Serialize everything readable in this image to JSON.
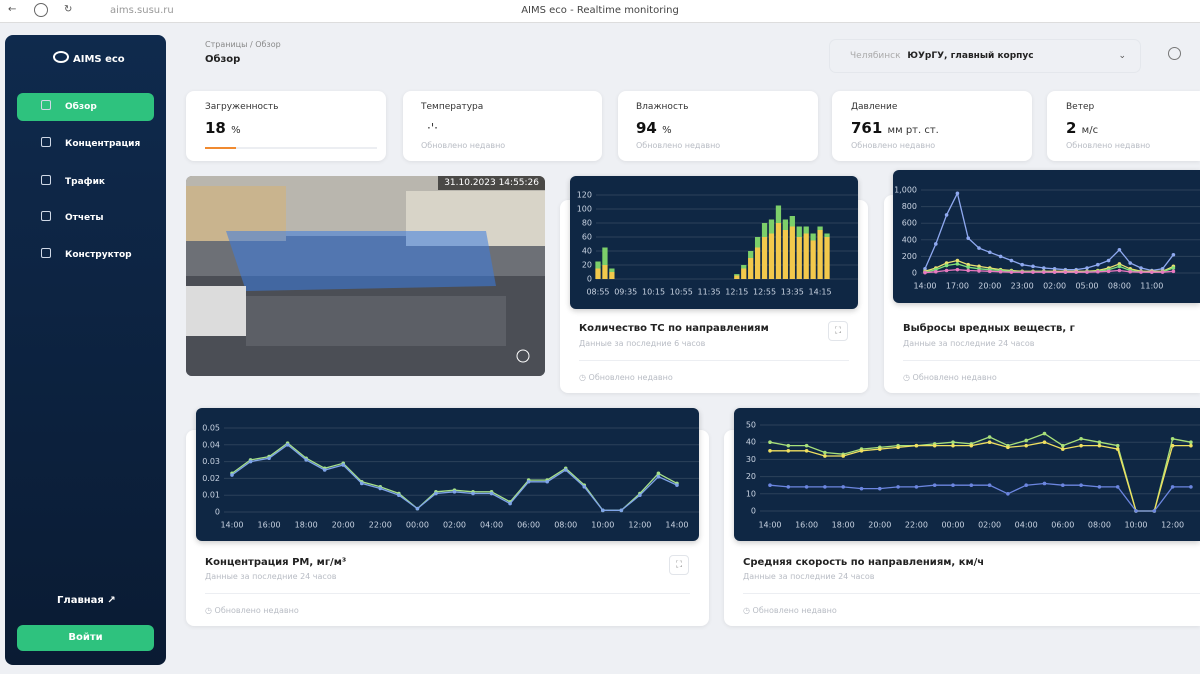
{
  "browser": {
    "url": "aims.susu.ru",
    "title": "AIMS eco - Realtime monitoring"
  },
  "sidebar": {
    "brand": "AIMS eco",
    "nav": [
      "Обзор",
      "Концентрация",
      "Трафик",
      "Отчеты",
      "Конструктор"
    ],
    "home": "Главная",
    "login": "Войти"
  },
  "header": {
    "breadcrumb": [
      "Страницы",
      "Обзор"
    ],
    "title": "Обзор",
    "city": "Челябинск",
    "location": "ЮУрГУ, главный корпус"
  },
  "stats": [
    {
      "label": "Загруженность",
      "value": 18,
      "unit": "%"
    },
    {
      "label": "Температура",
      "note": "Обновлено недавно"
    },
    {
      "label": "Влажность",
      "value": 94,
      "unit": "%",
      "note": "Обновлено недавно"
    },
    {
      "label": "Давление",
      "value": 761,
      "unit": "мм рт. ст.",
      "note": "Обновлено недавно"
    },
    {
      "label": "Ветер",
      "value": 2,
      "unit": "м/с",
      "note": "Обновлено недавно"
    }
  ],
  "camera": {
    "timestamp": "31.10.2023 14:55:26"
  },
  "chart_data": [
    {
      "type": "bar",
      "title": "Количество ТС по направлениям",
      "subtitle": "Данные за последние 6 часов",
      "footer": "Обновлено недавно",
      "categories": [
        "08:55",
        null,
        null,
        null,
        "09:35",
        null,
        null,
        null,
        "10:15",
        null,
        null,
        null,
        "10:55",
        null,
        null,
        null,
        "11:35",
        null,
        null,
        null,
        "12:15",
        null,
        null,
        null,
        "12:55",
        null,
        null,
        null,
        "13:35",
        null,
        null,
        null,
        "14:15",
        null
      ],
      "series": [
        {
          "color": "#f2c94c",
          "values": [
            15,
            20,
            10,
            0,
            0,
            0,
            0,
            0,
            0,
            0,
            0,
            0,
            0,
            0,
            0,
            0,
            0,
            0,
            0,
            0,
            5,
            15,
            30,
            45,
            60,
            65,
            80,
            70,
            75,
            60,
            65,
            55,
            70,
            60
          ]
        },
        {
          "color": "#7ccf6a",
          "values": [
            10,
            25,
            5,
            0,
            0,
            0,
            0,
            0,
            0,
            0,
            0,
            0,
            0,
            0,
            0,
            0,
            0,
            0,
            0,
            0,
            2,
            5,
            10,
            15,
            20,
            20,
            25,
            15,
            15,
            15,
            10,
            10,
            5,
            5
          ]
        }
      ],
      "ylim": [
        0,
        120
      ],
      "yticks": [
        0,
        20,
        40,
        60,
        80,
        100,
        120
      ],
      "grid": true
    },
    {
      "type": "line",
      "title": "Выбросы вредных веществ, г",
      "subtitle": "Данные за последние 24 часов",
      "footer": "Обновлено недавно",
      "categories": [
        "14:00",
        null,
        null,
        "17:00",
        null,
        null,
        "20:00",
        null,
        null,
        "23:00",
        null,
        null,
        "02:00",
        null,
        null,
        "05:00",
        null,
        null,
        "08:00",
        null,
        null,
        "11:00",
        null,
        null
      ],
      "series": [
        {
          "color": "#8fa9f0",
          "values": [
            50,
            350,
            700,
            960,
            420,
            300,
            250,
            200,
            150,
            100,
            80,
            60,
            50,
            40,
            40,
            60,
            100,
            150,
            280,
            120,
            60,
            30,
            50,
            220
          ]
        },
        {
          "color": "#e8e070",
          "values": [
            20,
            60,
            120,
            150,
            100,
            80,
            60,
            40,
            30,
            20,
            20,
            20,
            20,
            20,
            20,
            20,
            30,
            60,
            110,
            50,
            20,
            20,
            20,
            80
          ]
        },
        {
          "color": "#7fe07a",
          "values": [
            10,
            40,
            90,
            110,
            70,
            50,
            40,
            30,
            20,
            15,
            15,
            15,
            10,
            10,
            10,
            15,
            20,
            40,
            80,
            30,
            15,
            10,
            15,
            60
          ]
        },
        {
          "color": "#e879c0",
          "values": [
            5,
            15,
            30,
            40,
            30,
            25,
            20,
            15,
            10,
            10,
            10,
            10,
            10,
            10,
            10,
            10,
            15,
            20,
            30,
            15,
            10,
            10,
            10,
            20
          ]
        }
      ],
      "ylim": [
        0,
        1000
      ],
      "yticks": [
        0,
        200,
        400,
        600,
        800,
        {
          "value": 1000,
          "label": "1,000"
        }
      ],
      "grid": true
    },
    {
      "type": "line",
      "title": "Концентрация PM, мг/м³",
      "subtitle": "Данные за последние 24 часов",
      "footer": "Обновлено недавно",
      "categories": [
        "14:00",
        null,
        "16:00",
        null,
        "18:00",
        null,
        "20:00",
        null,
        "22:00",
        null,
        "00:00",
        null,
        "02:00",
        null,
        "04:00",
        null,
        "06:00",
        null,
        "08:00",
        null,
        "10:00",
        null,
        "12:00",
        null,
        "14:00"
      ],
      "series": [
        {
          "color": "#a6e08a",
          "values": [
            0.023,
            0.031,
            0.033,
            0.041,
            0.032,
            0.026,
            0.029,
            0.018,
            0.015,
            0.011,
            0.002,
            0.012,
            0.013,
            0.012,
            0.012,
            0.006,
            0.019,
            0.019,
            0.026,
            0.016,
            0.001,
            0.001,
            0.011,
            0.023,
            0.017
          ]
        },
        {
          "color": "#7fa4e8",
          "values": [
            0.022,
            0.03,
            0.032,
            0.04,
            0.031,
            0.025,
            0.028,
            0.017,
            0.014,
            0.01,
            0.002,
            0.011,
            0.012,
            0.011,
            0.011,
            0.005,
            0.018,
            0.018,
            0.025,
            0.015,
            0.001,
            0.001,
            0.01,
            0.021,
            0.016
          ]
        }
      ],
      "ylim": [
        0,
        0.05
      ],
      "yticks": [
        0,
        0.01,
        0.02,
        0.03,
        0.04,
        0.05
      ],
      "grid": true
    },
    {
      "type": "line",
      "title": "Средняя скорость по направлениям, км/ч",
      "subtitle": "Данные за последние 24 часов",
      "footer": "Обновлено недавно",
      "categories": [
        "14:00",
        null,
        "16:00",
        null,
        "18:00",
        null,
        "20:00",
        null,
        "22:00",
        null,
        "00:00",
        null,
        "02:00",
        null,
        "04:00",
        null,
        "06:00",
        null,
        "08:00",
        null,
        "10:00",
        null,
        "12:00",
        null
      ],
      "series": [
        {
          "color": "#a8e07a",
          "values": [
            40,
            38,
            38,
            34,
            33,
            36,
            37,
            38,
            38,
            39,
            40,
            39,
            43,
            38,
            41,
            45,
            38,
            42,
            40,
            38,
            0,
            0,
            42,
            40
          ]
        },
        {
          "color": "#f0e060",
          "values": [
            35,
            35,
            35,
            32,
            32,
            35,
            36,
            37,
            38,
            38,
            38,
            38,
            40,
            37,
            38,
            40,
            36,
            38,
            38,
            36,
            0,
            0,
            38,
            38
          ]
        },
        {
          "color": "#6c86e0",
          "values": [
            15,
            14,
            14,
            14,
            14,
            13,
            13,
            14,
            14,
            15,
            15,
            15,
            15,
            10,
            15,
            16,
            15,
            15,
            14,
            14,
            0,
            0,
            14,
            14
          ]
        }
      ],
      "ylim": [
        0,
        50
      ],
      "yticks": [
        0,
        10,
        20,
        30,
        40,
        50
      ],
      "grid": true
    }
  ]
}
